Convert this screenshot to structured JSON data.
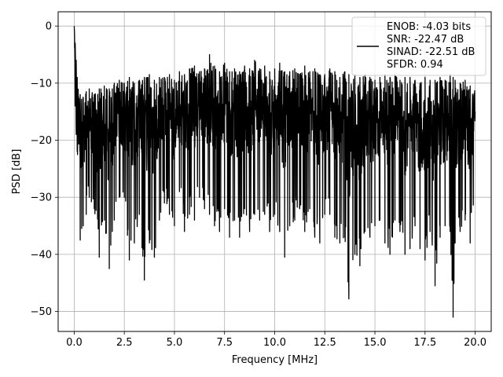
{
  "chart_data": {
    "type": "line",
    "xlabel": "Frequency [MHz]",
    "ylabel": "PSD [dB]",
    "xlim": [
      -0.8,
      20.8
    ],
    "ylim": [
      -53.5,
      2.5
    ],
    "xticks": [
      0.0,
      2.5,
      5.0,
      7.5,
      10.0,
      12.5,
      15.0,
      17.5,
      20.0
    ],
    "xtick_labels": [
      "0.0",
      "2.5",
      "5.0",
      "7.5",
      "10.0",
      "12.5",
      "15.0",
      "17.5",
      "20.0"
    ],
    "yticks": [
      0,
      -10,
      -20,
      -30,
      -40,
      -50
    ],
    "ytick_labels": [
      "0",
      "−10",
      "−20",
      "−30",
      "−40",
      "−50"
    ],
    "grid": true,
    "line_color": "#000000",
    "legend": {
      "placement": "upper-right",
      "lines": [
        "ENOB: -4.03 bits",
        "SNR: -22.47 dB",
        "SINAD: -22.51 dB",
        "SFDR: 0.94"
      ]
    },
    "series": [
      {
        "x": [
          0.0,
          0.05,
          0.1,
          0.15,
          0.3,
          0.45,
          0.6,
          0.75,
          1.0,
          1.25,
          1.5,
          1.75,
          1.9,
          2.0,
          2.25,
          2.5,
          2.75,
          3.0,
          3.25,
          3.5,
          3.75,
          4.0,
          4.25,
          4.5,
          4.75,
          5.0,
          5.25,
          5.5,
          5.75,
          6.0,
          6.25,
          6.5,
          6.75,
          7.0,
          7.25,
          7.5,
          7.75,
          8.0,
          8.25,
          8.5,
          8.75,
          9.0,
          9.25,
          9.5,
          9.75,
          10.0,
          10.25,
          10.5,
          10.75,
          11.0,
          11.25,
          11.5,
          11.75,
          12.0,
          12.25,
          12.5,
          12.75,
          13.0,
          13.25,
          13.5,
          13.7,
          14.0,
          14.25,
          14.5,
          14.75,
          15.0,
          15.25,
          15.5,
          15.75,
          16.0,
          16.25,
          16.5,
          16.75,
          17.0,
          17.25,
          17.5,
          17.75,
          18.0,
          18.25,
          18.5,
          18.75,
          18.9,
          19.0,
          19.25,
          19.5,
          19.75,
          20.0
        ],
        "y_high": [
          0.0,
          -3,
          -6,
          -9,
          -12,
          -12.5,
          -11.5,
          -11,
          -12,
          -11,
          -10.5,
          -11,
          -11,
          -10,
          -9.5,
          -10,
          -9,
          -10,
          -9.5,
          -9,
          -8.5,
          -9.5,
          -9,
          -9,
          -8.5,
          -9.5,
          -8,
          -8.5,
          -7.5,
          -7,
          -8,
          -7.5,
          -5,
          -7,
          -8,
          -6.5,
          -8,
          -7.5,
          -8,
          -7,
          -7.5,
          -6,
          -7.5,
          -7,
          -8,
          -7.5,
          -6.5,
          -8,
          -8,
          -7.5,
          -8.5,
          -7,
          -8,
          -7.5,
          -8.5,
          -8.5,
          -7.5,
          -8,
          -9,
          -8,
          -8.5,
          -8.5,
          -9,
          -8.5,
          -9,
          -9.5,
          -9,
          -8.5,
          -9,
          -8.5,
          -9.5,
          -9,
          -9,
          -9.5,
          -10,
          -9,
          -9.5,
          -9.5,
          -9,
          -9.5,
          -8.5,
          -9,
          -9.5,
          -10,
          -9.5,
          -10.5,
          -11
        ],
        "y_low": [
          -1,
          -14,
          -19,
          -22,
          -37.5,
          -35,
          -33,
          -30,
          -32,
          -40.5,
          -34,
          -42.5,
          -36,
          -34,
          -30,
          -30,
          -41,
          -38,
          -33,
          -44.5,
          -38,
          -40.5,
          -34,
          -31,
          -33,
          -35,
          -29,
          -36,
          -33,
          -34,
          -30,
          -32,
          -33,
          -35,
          -36,
          -32,
          -37,
          -34,
          -37,
          -32,
          -36,
          -33,
          -34,
          -33,
          -36,
          -33,
          -36,
          -40.5,
          -35,
          -34,
          -32,
          -36,
          -32,
          -37,
          -38,
          -33,
          -33,
          -37,
          -38,
          -37,
          -47.8,
          -40,
          -42,
          -36,
          -37,
          -35,
          -34,
          -38,
          -40,
          -34,
          -36,
          -40,
          -39,
          -35,
          -39,
          -41,
          -36,
          -45.5,
          -37,
          -35,
          -36,
          -51,
          -38,
          -36,
          -34,
          -38,
          -28
        ]
      }
    ]
  }
}
